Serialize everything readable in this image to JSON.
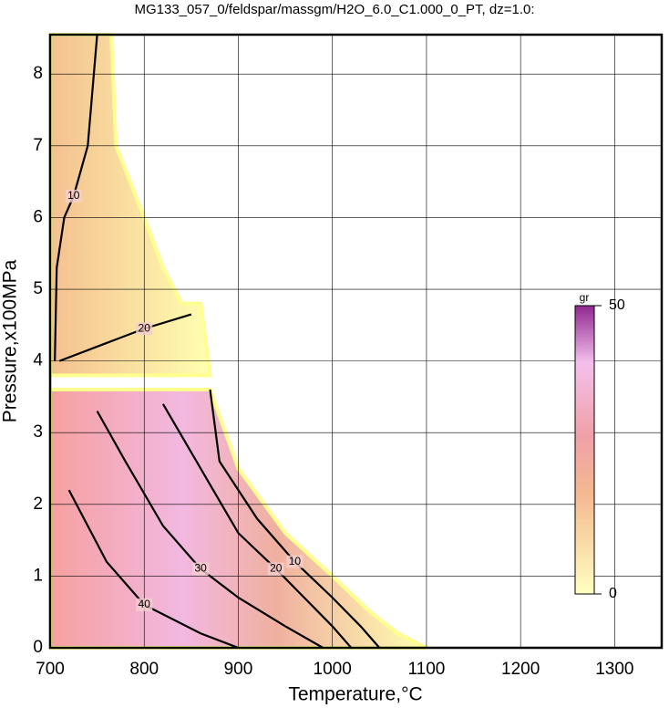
{
  "chart_data": {
    "type": "contour",
    "title": "MG133_057_0/feldspar/massgm/H2O_6.0_C1.000_0_PT, dz=1.0:",
    "x_label": "Temperature,°C",
    "y_label": "Pressure,x100MPa",
    "xlim": [
      700,
      1350
    ],
    "ylim": [
      0,
      8.55
    ],
    "xticks": [
      700,
      800,
      900,
      1000,
      1100,
      1200,
      1300
    ],
    "yticks": [
      0,
      1,
      2,
      3,
      4,
      5,
      6,
      7,
      8
    ],
    "grid": true,
    "contours": [
      {
        "level": 10,
        "x": [
          870,
          880,
          920,
          960,
          1000,
          1030,
          1050
        ],
        "y": [
          3.6,
          2.6,
          1.8,
          1.2,
          0.7,
          0.3,
          0
        ]
      },
      {
        "level": 20,
        "x": [
          820,
          860,
          900,
          940,
          970,
          1000,
          1020
        ],
        "y": [
          3.4,
          2.5,
          1.6,
          1.1,
          0.7,
          0.3,
          0
        ]
      },
      {
        "level": 30,
        "x": [
          750,
          780,
          820,
          860,
          900,
          950,
          990
        ],
        "y": [
          3.3,
          2.6,
          1.7,
          1.1,
          0.7,
          0.3,
          0
        ]
      },
      {
        "level": 40,
        "x": [
          720,
          740,
          760,
          800,
          860,
          900
        ],
        "y": [
          2.2,
          1.7,
          1.2,
          0.6,
          0.2,
          0
        ]
      },
      {
        "level": 10,
        "x": [
          705,
          707,
          715,
          725,
          740,
          750
        ],
        "y": [
          4.0,
          5.3,
          6.0,
          6.3,
          7.0,
          8.55
        ]
      },
      {
        "level": 20,
        "x": [
          710,
          760,
          800,
          850
        ],
        "y": [
          4.0,
          4.25,
          4.45,
          4.65
        ]
      }
    ],
    "colorbar": {
      "label": "gr",
      "lim": [
        0,
        50
      ],
      "ticks": [
        0,
        50
      ]
    }
  }
}
